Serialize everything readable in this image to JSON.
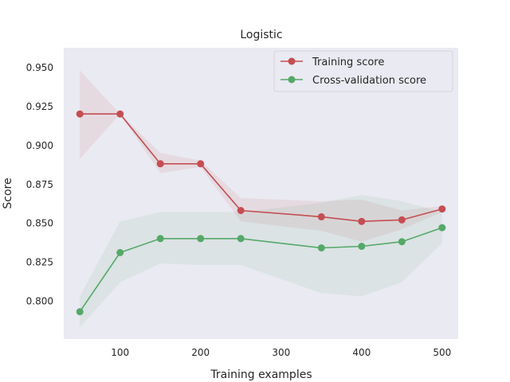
{
  "chart_data": {
    "type": "line",
    "title": "Logistic",
    "xlabel": "Training examples",
    "ylabel": "Score",
    "xlim": [
      30,
      520
    ],
    "ylim": [
      0.7755,
      0.9625
    ],
    "xticks": [
      100,
      200,
      300,
      400,
      500
    ],
    "yticks": [
      0.8,
      0.825,
      0.85,
      0.875,
      0.9,
      0.925,
      0.95
    ],
    "ytick_labels": [
      "0.800",
      "0.825",
      "0.850",
      "0.875",
      "0.900",
      "0.925",
      "0.950"
    ],
    "grid": false,
    "legend_position": "top-right",
    "x": [
      50,
      100,
      150,
      200,
      250,
      350,
      400,
      450,
      500
    ],
    "series": [
      {
        "name": "Training score",
        "color": "#c44e52",
        "values": [
          0.92,
          0.92,
          0.888,
          0.888,
          0.858,
          0.854,
          0.851,
          0.852,
          0.859
        ],
        "band_upper": [
          0.948,
          0.92,
          0.895,
          0.89,
          0.866,
          0.864,
          0.865,
          0.858,
          0.861
        ],
        "band_lower": [
          0.891,
          0.92,
          0.882,
          0.886,
          0.851,
          0.845,
          0.838,
          0.846,
          0.857
        ]
      },
      {
        "name": "Cross-validation score",
        "color": "#55a868",
        "values": [
          0.793,
          0.831,
          0.84,
          0.84,
          0.84,
          0.834,
          0.835,
          0.838,
          0.847
        ],
        "band_upper": [
          0.803,
          0.851,
          0.857,
          0.857,
          0.857,
          0.863,
          0.868,
          0.864,
          0.857
        ],
        "band_lower": [
          0.783,
          0.812,
          0.824,
          0.823,
          0.823,
          0.805,
          0.803,
          0.812,
          0.837
        ]
      }
    ]
  }
}
